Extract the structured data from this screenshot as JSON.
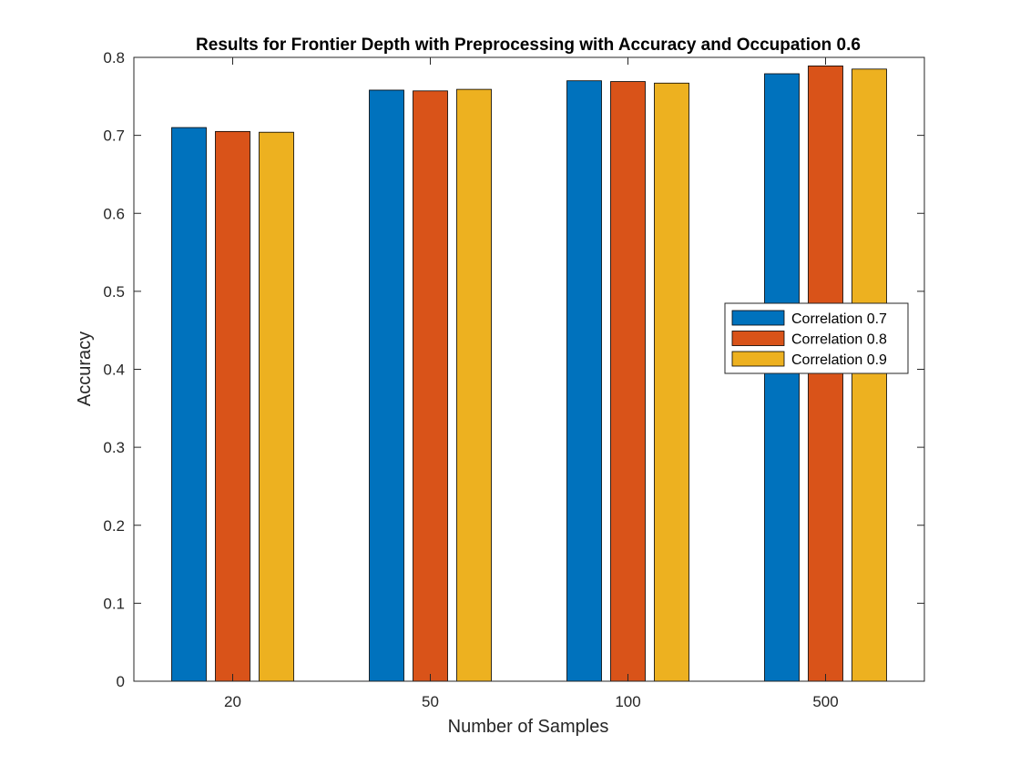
{
  "chart_data": {
    "type": "bar",
    "title": "Results for Frontier Depth with Preprocessing with Accuracy and Occupation 0.6",
    "xlabel": "Number of Samples",
    "ylabel": "Accuracy",
    "categories": [
      "20",
      "50",
      "100",
      "500"
    ],
    "ylim": [
      0,
      0.8
    ],
    "yticks": [
      "0",
      "0.1",
      "0.2",
      "0.3",
      "0.4",
      "0.5",
      "0.6",
      "0.7",
      "0.8"
    ],
    "grid": false,
    "legend_position": "right",
    "series": [
      {
        "name": "Correlation 0.7",
        "color": "#0072BD",
        "values": [
          0.71,
          0.758,
          0.77,
          0.779
        ]
      },
      {
        "name": "Correlation 0.8",
        "color": "#D95319",
        "values": [
          0.705,
          0.757,
          0.769,
          0.789
        ]
      },
      {
        "name": "Correlation 0.9",
        "color": "#EDB120",
        "values": [
          0.704,
          0.759,
          0.767,
          0.785
        ]
      }
    ]
  }
}
